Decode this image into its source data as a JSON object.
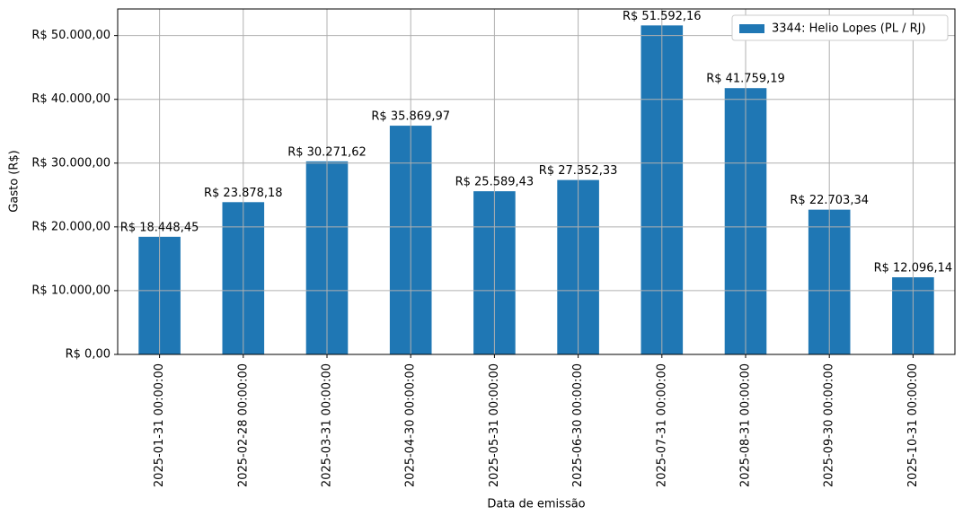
{
  "chart_data": {
    "type": "bar",
    "xlabel": "Data de emissão",
    "ylabel": "Gasto (R$)",
    "categories": [
      "2025-01-31 00:00:00",
      "2025-02-28 00:00:00",
      "2025-03-31 00:00:00",
      "2025-04-30 00:00:00",
      "2025-05-31 00:00:00",
      "2025-06-30 00:00:00",
      "2025-07-31 00:00:00",
      "2025-08-31 00:00:00",
      "2025-09-30 00:00:00",
      "2025-10-31 00:00:00"
    ],
    "series": [
      {
        "name": "3344: Helio Lopes (PL / RJ)",
        "color": "#1f77b4",
        "values": [
          18448.45,
          23878.18,
          30271.62,
          35869.97,
          25589.43,
          27352.33,
          51592.16,
          41759.19,
          22703.34,
          12096.14
        ],
        "value_labels": [
          "R$ 18.448,45",
          "R$ 23.878,18",
          "R$ 30.271,62",
          "R$ 35.869,97",
          "R$ 25.589,43",
          "R$ 27.352,33",
          "R$ 51.592,16",
          "R$ 41.759,19",
          "R$ 22.703,34",
          "R$ 12.096,14"
        ]
      }
    ],
    "ylim": [
      0,
      54171.77
    ],
    "yticks": [
      {
        "value": 0,
        "label": "R$ 0,00"
      },
      {
        "value": 10000,
        "label": "R$ 10.000,00"
      },
      {
        "value": 20000,
        "label": "R$ 20.000,00"
      },
      {
        "value": 30000,
        "label": "R$ 30.000,00"
      },
      {
        "value": 40000,
        "label": "R$ 40.000,00"
      },
      {
        "value": 50000,
        "label": "R$ 50.000,00"
      }
    ],
    "grid": true,
    "legend": "upper right"
  }
}
